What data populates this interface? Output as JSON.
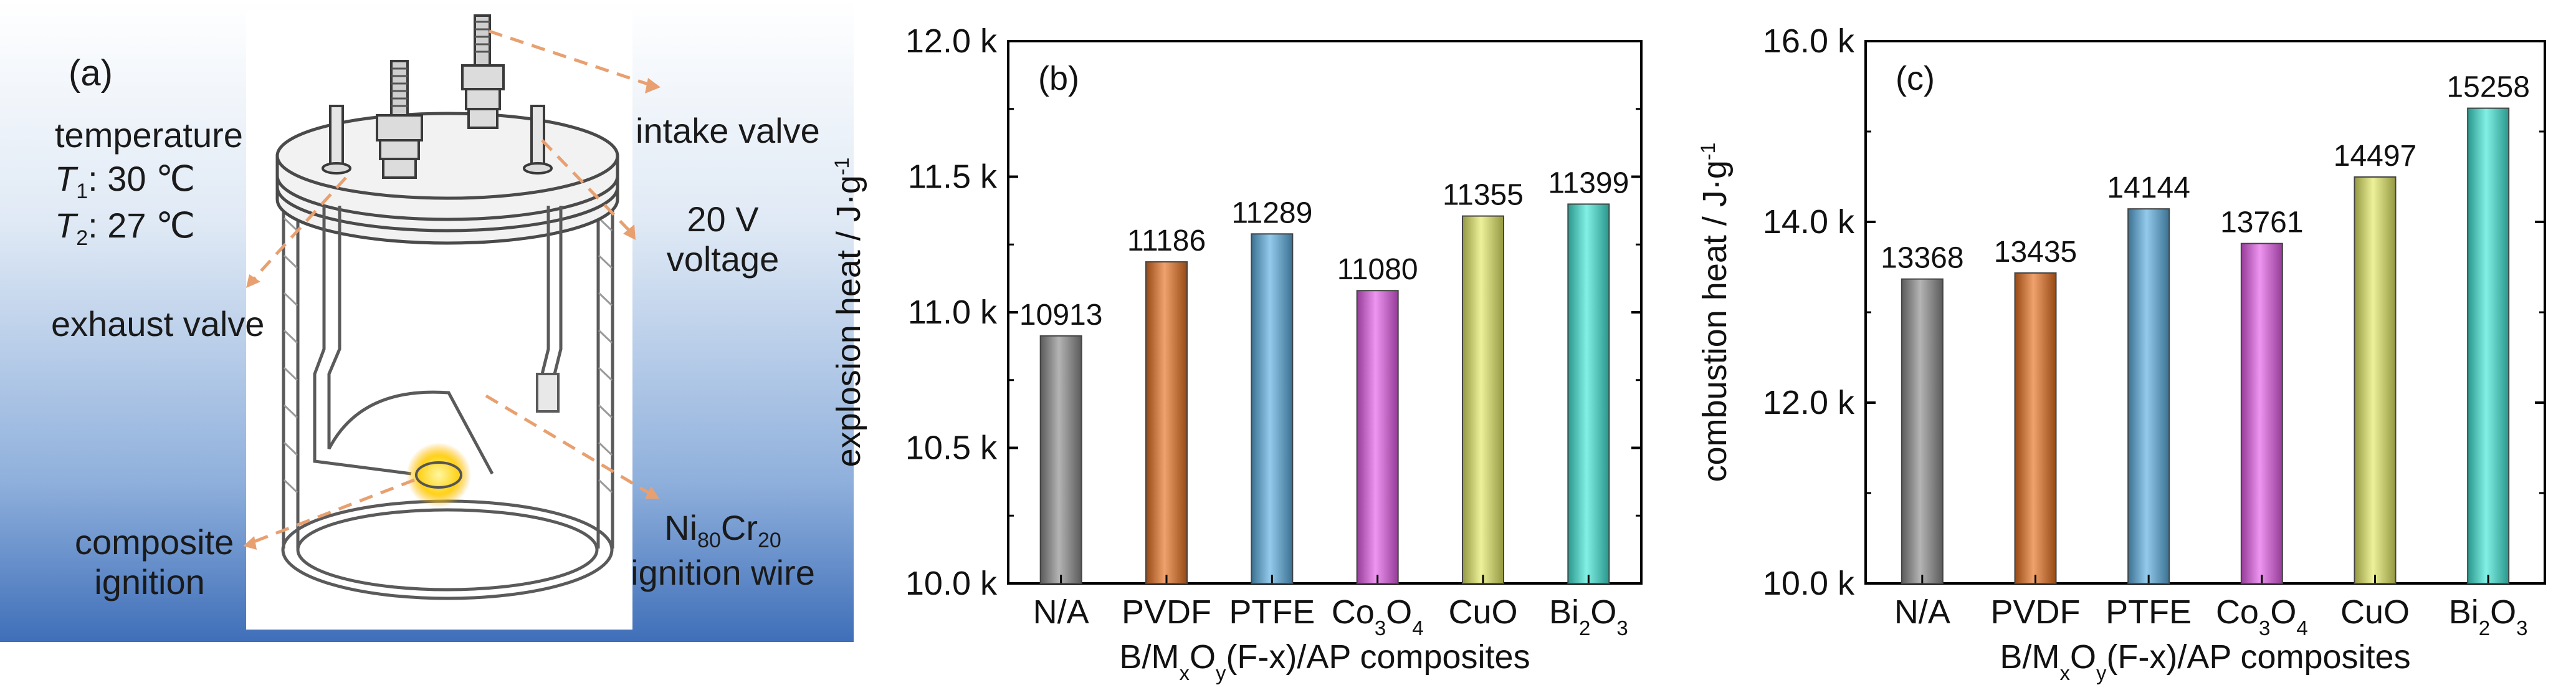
{
  "panel_a": {
    "label": "(a)",
    "temperature_title": "temperature",
    "t1_sym": "T",
    "t1_sub": "1",
    "t1_val": ": 30 ℃",
    "t2_sym": "T",
    "t2_sub": "2",
    "t2_val": ": 27 ℃",
    "exhaust_valve": "exhaust valve",
    "intake_valve": "intake valve",
    "voltage_line1": "20 V",
    "voltage_line2": "voltage",
    "composite_line1": "composite",
    "composite_line2": "ignition",
    "wire_ni": "Ni",
    "wire_ni_sub": "80",
    "wire_cr": "Cr",
    "wire_cr_sub": "20",
    "wire_line2": "ignition wire"
  },
  "chart_data": [
    {
      "type": "bar",
      "panel_label": "(b)",
      "categories": [
        "N/A",
        "PVDF",
        "PTFE",
        "Co3O4",
        "CuO",
        "Bi2O3"
      ],
      "values": [
        10913,
        11186,
        11289,
        11080,
        11355,
        11399
      ],
      "data_labels": [
        "10913",
        "11186",
        "11289",
        "11080",
        "11355",
        "11399"
      ],
      "ylabel": "explosion heat / J·g-1",
      "xlabel": "B/MxOy(F-x)/AP composites",
      "ylim": [
        10000,
        12000
      ],
      "yticks": [
        10000,
        10500,
        11000,
        11500,
        12000
      ],
      "ytick_labels": [
        "10.0 k",
        "10.5 k",
        "11.0 k",
        "11.5 k",
        "12.0 k"
      ],
      "grid": false,
      "colors": [
        "#8c8c8c",
        "#e8701e",
        "#5aaee0",
        "#e35ce8",
        "#e3ea64",
        "#3fe8d6"
      ]
    },
    {
      "type": "bar",
      "panel_label": "(c)",
      "categories": [
        "N/A",
        "PVDF",
        "PTFE",
        "Co3O4",
        "CuO",
        "Bi2O3"
      ],
      "values": [
        13368,
        13435,
        14144,
        13761,
        14497,
        15258
      ],
      "data_labels": [
        "13368",
        "13435",
        "14144",
        "13761",
        "14497",
        "15258"
      ],
      "ylabel": "combustion heat / J·g-1",
      "xlabel": "B/MxOy(F-x)/AP composites",
      "ylim": [
        10000,
        16000
      ],
      "yticks": [
        10000,
        12000,
        14000,
        16000
      ],
      "ytick_labels": [
        "10.0 k",
        "12.0 k",
        "14.0 k",
        "16.0 k"
      ],
      "grid": false,
      "colors": [
        "#8c8c8c",
        "#e8701e",
        "#5aaee0",
        "#e35ce8",
        "#e3ea64",
        "#3fe8d6"
      ]
    }
  ]
}
